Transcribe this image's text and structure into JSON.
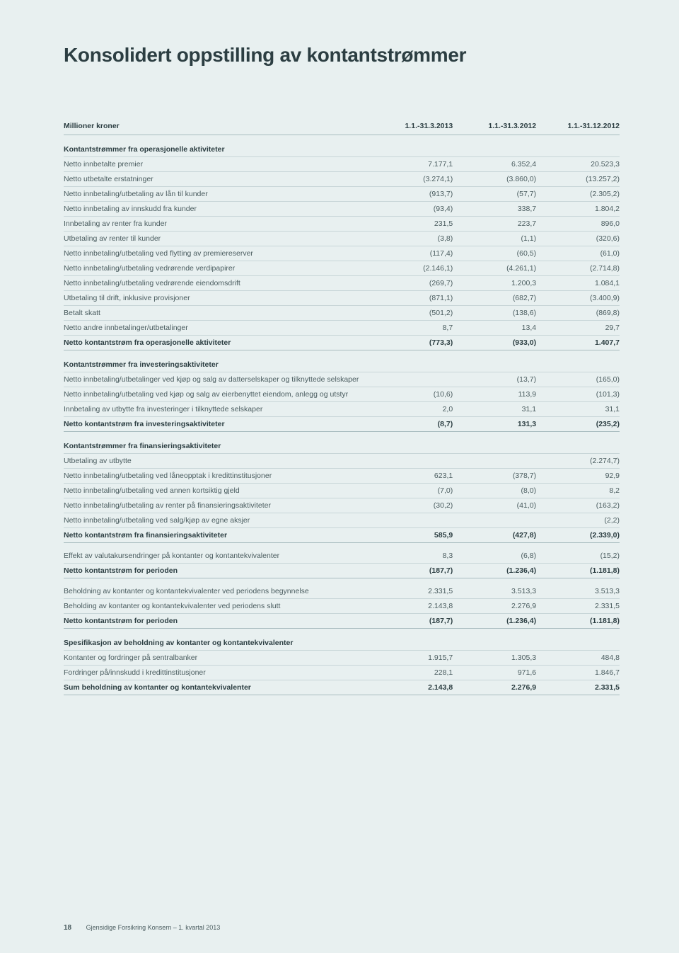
{
  "title": "Konsolidert oppstilling av kontantstrømmer",
  "header": {
    "label": "Millioner kroner",
    "col1": "1.1.-31.3.2013",
    "col2": "1.1.-31.3.2012",
    "col3": "1.1.-31.12.2012"
  },
  "sections": [
    {
      "title": "Kontantstrømmer fra operasjonelle aktiviteter",
      "rows": [
        {
          "label": "Netto innbetalte premier",
          "v1": "7.177,1",
          "v2": "6.352,4",
          "v3": "20.523,3"
        },
        {
          "label": "Netto utbetalte erstatninger",
          "v1": "(3.274,1)",
          "v2": "(3.860,0)",
          "v3": "(13.257,2)"
        },
        {
          "label": "Netto innbetaling/utbetaling av lån til kunder",
          "v1": "(913,7)",
          "v2": "(57,7)",
          "v3": "(2.305,2)"
        },
        {
          "label": "Netto innbetaling av innskudd fra kunder",
          "v1": "(93,4)",
          "v2": "338,7",
          "v3": "1.804,2"
        },
        {
          "label": "Innbetaling av renter fra kunder",
          "v1": "231,5",
          "v2": "223,7",
          "v3": "896,0"
        },
        {
          "label": "Utbetaling av renter til kunder",
          "v1": "(3,8)",
          "v2": "(1,1)",
          "v3": "(320,6)"
        },
        {
          "label": "Netto innbetaling/utbetaling ved flytting av premiereserver",
          "v1": "(117,4)",
          "v2": "(60,5)",
          "v3": "(61,0)"
        },
        {
          "label": "Netto innbetaling/utbetaling vedrørende verdipapirer",
          "v1": "(2.146,1)",
          "v2": "(4.261,1)",
          "v3": "(2.714,8)"
        },
        {
          "label": "Netto innbetaling/utbetaling vedrørende eiendomsdrift",
          "v1": "(269,7)",
          "v2": "1.200,3",
          "v3": "1.084,1"
        },
        {
          "label": "Utbetaling til drift, inklusive provisjoner",
          "v1": "(871,1)",
          "v2": "(682,7)",
          "v3": "(3.400,9)"
        },
        {
          "label": "Betalt skatt",
          "v1": "(501,2)",
          "v2": "(138,6)",
          "v3": "(869,8)"
        },
        {
          "label": "Netto andre innbetalinger/utbetalinger",
          "v1": "8,7",
          "v2": "13,4",
          "v3": "29,7"
        }
      ],
      "total": {
        "label": "Netto kontantstrøm fra operasjonelle aktiviteter",
        "v1": "(773,3)",
        "v2": "(933,0)",
        "v3": "1.407,7"
      }
    },
    {
      "title": "Kontantstrømmer fra investeringsaktiviteter",
      "rows": [
        {
          "label": "Netto innbetaling/utbetalinger ved kjøp og salg av datterselskaper og tilknyttede selskaper",
          "v1": "",
          "v2": "(13,7)",
          "v3": "(165,0)"
        },
        {
          "label": "Netto innbetaling/utbetaling ved kjøp og salg av eierbenyttet eiendom, anlegg og utstyr",
          "v1": "(10,6)",
          "v2": "113,9",
          "v3": "(101,3)"
        },
        {
          "label": "Innbetaling av utbytte fra investeringer i tilknyttede selskaper",
          "v1": "2,0",
          "v2": "31,1",
          "v3": "31,1"
        }
      ],
      "total": {
        "label": "Netto kontantstrøm fra investeringsaktiviteter",
        "v1": "(8,7)",
        "v2": "131,3",
        "v3": "(235,2)"
      }
    },
    {
      "title": "Kontantstrømmer fra finansieringsaktiviteter",
      "rows": [
        {
          "label": "Utbetaling av utbytte",
          "v1": "",
          "v2": "",
          "v3": "(2.274,7)"
        },
        {
          "label": "Netto innbetaling/utbetaling ved låneopptak i kredittinstitusjoner",
          "v1": "623,1",
          "v2": "(378,7)",
          "v3": "92,9"
        },
        {
          "label": "Netto innbetaling/utbetaling ved annen kortsiktig gjeld",
          "v1": "(7,0)",
          "v2": "(8,0)",
          "v3": "8,2"
        },
        {
          "label": "Netto innbetaling/utbetaling av renter på finansieringsaktiviteter",
          "v1": "(30,2)",
          "v2": "(41,0)",
          "v3": "(163,2)"
        },
        {
          "label": "Netto innbetaling/utbetaling ved salg/kjøp av egne aksjer",
          "v1": "",
          "v2": "",
          "v3": "(2,2)"
        }
      ],
      "total": {
        "label": "Netto kontantstrøm fra finansieringsaktiviteter",
        "v1": "585,9",
        "v2": "(427,8)",
        "v3": "(2.339,0)"
      }
    }
  ],
  "summary": [
    {
      "label": "Effekt av valutakursendringer på kontanter og kontantekvivalenter",
      "v1": "8,3",
      "v2": "(6,8)",
      "v3": "(15,2)",
      "bold": false
    },
    {
      "label": "Netto kontantstrøm for perioden",
      "v1": "(187,7)",
      "v2": "(1.236,4)",
      "v3": "(1.181,8)",
      "bold": true
    },
    {
      "label": "Beholdning av kontanter og kontantekvivalenter ved periodens begynnelse",
      "v1": "2.331,5",
      "v2": "3.513,3",
      "v3": "3.513,3",
      "bold": false
    },
    {
      "label": "Beholding av kontanter og kontantekvivalenter ved periodens slutt",
      "v1": "2.143,8",
      "v2": "2.276,9",
      "v3": "2.331,5",
      "bold": false
    },
    {
      "label": "Netto kontantstrøm for perioden",
      "v1": "(187,7)",
      "v2": "(1.236,4)",
      "v3": "(1.181,8)",
      "bold": true
    }
  ],
  "spec": {
    "title": "Spesifikasjon av beholdning av kontanter og kontantekvivalenter",
    "rows": [
      {
        "label": "Kontanter og fordringer på sentralbanker",
        "v1": "1.915,7",
        "v2": "1.305,3",
        "v3": "484,8"
      },
      {
        "label": "Fordringer på/innskudd i kredittinstitusjoner",
        "v1": "228,1",
        "v2": "971,6",
        "v3": "1.846,7"
      }
    ],
    "total": {
      "label": "Sum beholdning av kontanter og kontantekvivalenter",
      "v1": "2.143,8",
      "v2": "2.276,9",
      "v3": "2.331,5"
    }
  },
  "footer": {
    "pagenum": "18",
    "text": "Gjensidige Forsikring Konsern – 1. kvartal 2013"
  }
}
